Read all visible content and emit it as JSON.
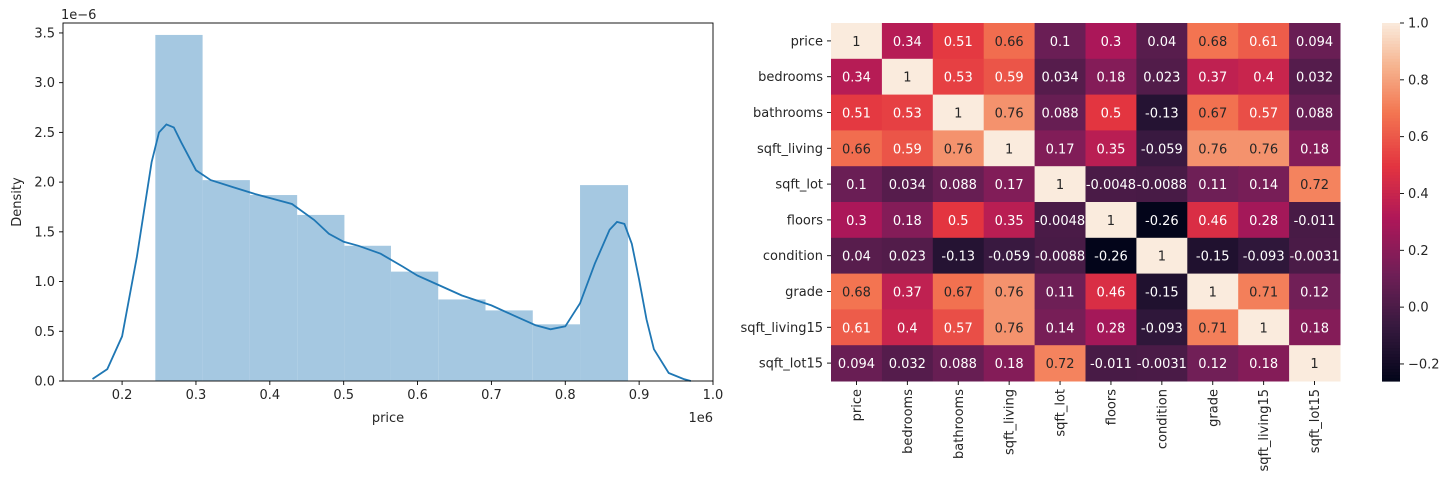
{
  "chart_data": [
    {
      "type": "histogram-kde",
      "xlabel": "price",
      "ylabel": "Density",
      "x_offset_label": "1e6",
      "y_offset_label": "1e−6",
      "xlim": [
        0.12,
        1.0
      ],
      "ylim": [
        0,
        3.6
      ],
      "x_ticks": [
        {
          "value": 0.2,
          "label": "0.2"
        },
        {
          "value": 0.3,
          "label": "0.3"
        },
        {
          "value": 0.4,
          "label": "0.4"
        },
        {
          "value": 0.5,
          "label": "0.5"
        },
        {
          "value": 0.6,
          "label": "0.6"
        },
        {
          "value": 0.7,
          "label": "0.7"
        },
        {
          "value": 0.8,
          "label": "0.8"
        },
        {
          "value": 0.9,
          "label": "0.9"
        },
        {
          "value": 1.0,
          "label": "1.0"
        }
      ],
      "y_ticks": [
        {
          "value": 0.0,
          "label": "0.0"
        },
        {
          "value": 0.5,
          "label": "0.5"
        },
        {
          "value": 1.0,
          "label": "1.0"
        },
        {
          "value": 1.5,
          "label": "1.5"
        },
        {
          "value": 2.0,
          "label": "2.0"
        },
        {
          "value": 2.5,
          "label": "2.5"
        },
        {
          "value": 3.0,
          "label": "3.0"
        },
        {
          "value": 3.5,
          "label": "3.5"
        }
      ],
      "bin_edges": [
        0.245,
        0.309,
        0.373,
        0.437,
        0.501,
        0.564,
        0.628,
        0.692,
        0.756,
        0.82,
        0.885
      ],
      "bin_values": [
        3.48,
        2.02,
        1.87,
        1.67,
        1.36,
        1.1,
        0.82,
        0.71,
        0.57,
        1.97
      ],
      "hist_color": "#a5c8e1",
      "kde_color": "#1f77b4",
      "kde_x": [
        0.16,
        0.18,
        0.2,
        0.22,
        0.24,
        0.25,
        0.26,
        0.27,
        0.28,
        0.3,
        0.32,
        0.35,
        0.38,
        0.4,
        0.43,
        0.46,
        0.48,
        0.5,
        0.52,
        0.55,
        0.58,
        0.6,
        0.63,
        0.66,
        0.7,
        0.73,
        0.76,
        0.78,
        0.8,
        0.82,
        0.84,
        0.86,
        0.87,
        0.88,
        0.89,
        0.9,
        0.91,
        0.92,
        0.94,
        0.96,
        0.97
      ],
      "kde_y": [
        0.02,
        0.12,
        0.45,
        1.25,
        2.2,
        2.5,
        2.58,
        2.55,
        2.4,
        2.12,
        2.02,
        1.95,
        1.88,
        1.84,
        1.78,
        1.62,
        1.48,
        1.4,
        1.36,
        1.28,
        1.15,
        1.06,
        0.96,
        0.86,
        0.76,
        0.66,
        0.56,
        0.52,
        0.55,
        0.78,
        1.18,
        1.52,
        1.6,
        1.58,
        1.38,
        1.02,
        0.62,
        0.32,
        0.08,
        0.02,
        0.0
      ]
    },
    {
      "type": "heatmap",
      "rows": [
        "price",
        "bedrooms",
        "bathrooms",
        "sqft_living",
        "sqft_lot",
        "floors",
        "condition",
        "grade",
        "sqft_living15",
        "sqft_lot15"
      ],
      "cols": [
        "price",
        "bedrooms",
        "bathrooms",
        "sqft_living",
        "sqft_lot",
        "floors",
        "condition",
        "grade",
        "sqft_living15",
        "sqft_lot15"
      ],
      "values": [
        [
          1,
          0.34,
          0.51,
          0.66,
          0.1,
          0.3,
          0.04,
          0.68,
          0.61,
          0.094
        ],
        [
          0.34,
          1,
          0.53,
          0.59,
          0.034,
          0.18,
          0.023,
          0.37,
          0.4,
          0.032
        ],
        [
          0.51,
          0.53,
          1,
          0.76,
          0.088,
          0.5,
          -0.13,
          0.67,
          0.57,
          0.088
        ],
        [
          0.66,
          0.59,
          0.76,
          1,
          0.17,
          0.35,
          -0.059,
          0.76,
          0.76,
          0.18
        ],
        [
          0.1,
          0.034,
          0.088,
          0.17,
          1,
          -0.0048,
          -0.0088,
          0.11,
          0.14,
          0.72
        ],
        [
          0.3,
          0.18,
          0.5,
          0.35,
          -0.0048,
          1,
          -0.26,
          0.46,
          0.28,
          -0.011
        ],
        [
          0.04,
          0.023,
          -0.13,
          -0.059,
          -0.0088,
          -0.26,
          1,
          -0.15,
          -0.093,
          -0.0031
        ],
        [
          0.68,
          0.37,
          0.67,
          0.76,
          0.11,
          0.46,
          -0.15,
          1,
          0.71,
          0.12
        ],
        [
          0.61,
          0.4,
          0.57,
          0.76,
          0.14,
          0.28,
          -0.093,
          0.71,
          1,
          0.18
        ],
        [
          0.094,
          0.032,
          0.088,
          0.18,
          0.72,
          -0.011,
          -0.0031,
          0.12,
          0.18,
          1
        ]
      ],
      "annotations": [
        [
          "1",
          "0.34",
          "0.51",
          "0.66",
          "0.1",
          "0.3",
          "0.04",
          "0.68",
          "0.61",
          "0.094"
        ],
        [
          "0.34",
          "1",
          "0.53",
          "0.59",
          "0.034",
          "0.18",
          "0.023",
          "0.37",
          "0.4",
          "0.032"
        ],
        [
          "0.51",
          "0.53",
          "1",
          "0.76",
          "0.088",
          "0.5",
          "-0.13",
          "0.67",
          "0.57",
          "0.088"
        ],
        [
          "0.66",
          "0.59",
          "0.76",
          "1",
          "0.17",
          "0.35",
          "-0.059",
          "0.76",
          "0.76",
          "0.18"
        ],
        [
          "0.1",
          "0.034",
          "0.088",
          "0.17",
          "1",
          "-0.0048",
          "-0.0088",
          "0.11",
          "0.14",
          "0.72"
        ],
        [
          "0.3",
          "0.18",
          "0.5",
          "0.35",
          "-0.0048",
          "1",
          "-0.26",
          "0.46",
          "0.28",
          "-0.011"
        ],
        [
          "0.04",
          "0.023",
          "-0.13",
          "-0.059",
          "-0.0088",
          "-0.26",
          "1",
          "-0.15",
          "-0.093",
          "-0.0031"
        ],
        [
          "0.68",
          "0.37",
          "0.67",
          "0.76",
          "0.11",
          "0.46",
          "-0.15",
          "1",
          "0.71",
          "0.12"
        ],
        [
          "0.61",
          "0.4",
          "0.57",
          "0.76",
          "0.14",
          "0.28",
          "-0.093",
          "0.71",
          "1",
          "0.18"
        ],
        [
          "0.094",
          "0.032",
          "0.088",
          "0.18",
          "0.72",
          "-0.011",
          "-0.0031",
          "0.12",
          "0.18",
          "1"
        ]
      ],
      "vmin": -0.26,
      "vmax": 1.0,
      "colormap": "rocket",
      "colorbar_ticks": [
        {
          "value": -0.2,
          "label": "−0.2"
        },
        {
          "value": 0.0,
          "label": "0.0"
        },
        {
          "value": 0.2,
          "label": "0.2"
        },
        {
          "value": 0.4,
          "label": "0.4"
        },
        {
          "value": 0.6,
          "label": "0.6"
        },
        {
          "value": 0.8,
          "label": "0.8"
        },
        {
          "value": 1.0,
          "label": "1.0"
        }
      ]
    }
  ]
}
